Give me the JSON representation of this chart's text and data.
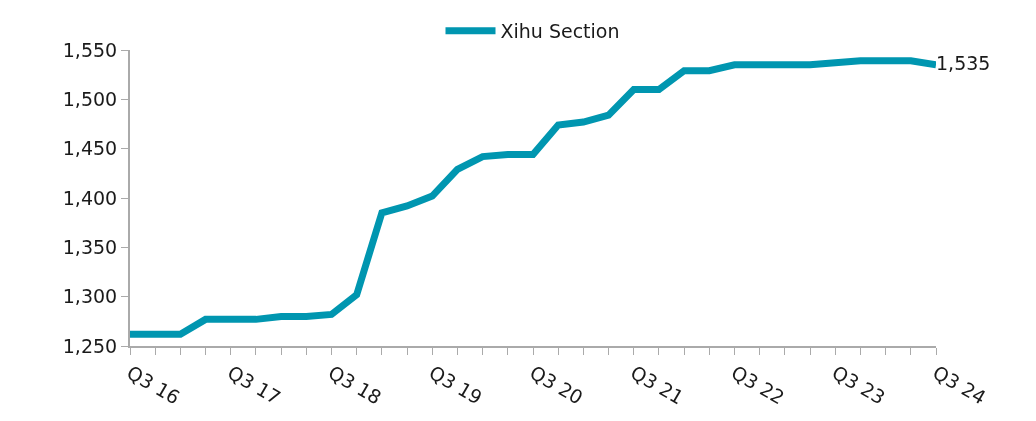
{
  "chart_data": {
    "type": "line",
    "categories": [
      "Q3 16",
      null,
      null,
      null,
      "Q3 17",
      null,
      null,
      null,
      "Q3 18",
      null,
      null,
      null,
      "Q3 19",
      null,
      null,
      null,
      "Q3 20",
      null,
      null,
      null,
      "Q3 21",
      null,
      null,
      null,
      "Q3 22",
      null,
      null,
      null,
      "Q3 23",
      null,
      null,
      null,
      "Q3 24"
    ],
    "series": [
      {
        "name": "Xihu Section",
        "color": "#0096b0",
        "values": [
          1262,
          1262,
          1262,
          1277,
          1277,
          1277,
          1280,
          1280,
          1282,
          1302,
          1385,
          1392,
          1402,
          1429,
          1442,
          1444,
          1444,
          1474,
          1477,
          1484,
          1510,
          1510,
          1529,
          1529,
          1535,
          1535,
          1535,
          1535,
          1537,
          1539,
          1539,
          1539,
          1535
        ],
        "value_labels": [
          null,
          null,
          null,
          null,
          null,
          null,
          null,
          null,
          null,
          null,
          null,
          null,
          null,
          null,
          null,
          null,
          null,
          null,
          null,
          null,
          null,
          null,
          null,
          null,
          null,
          null,
          null,
          null,
          null,
          null,
          null,
          null,
          "1,535"
        ]
      }
    ],
    "ylim": [
      1250,
      1550
    ],
    "yticks": [
      {
        "value": 1250,
        "label": "1,250"
      },
      {
        "value": 1300,
        "label": "1,300"
      },
      {
        "value": 1350,
        "label": "1,350"
      },
      {
        "value": 1400,
        "label": "1,400"
      },
      {
        "value": 1450,
        "label": "1,450"
      },
      {
        "value": 1500,
        "label": "1,500"
      },
      {
        "value": 1550,
        "label": "1,550"
      }
    ],
    "grid": false,
    "legend": "top",
    "marker": "none",
    "line_style": "solid"
  }
}
